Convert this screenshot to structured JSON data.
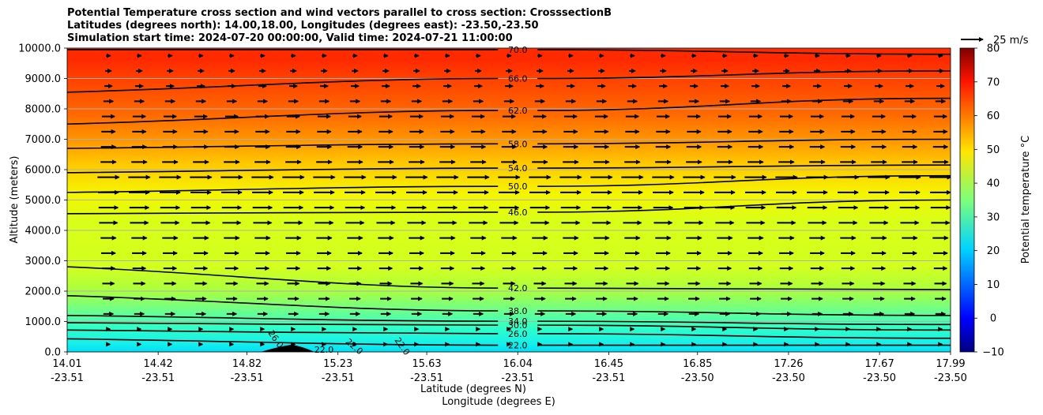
{
  "chart_data": {
    "type": "contour",
    "title_lines": [
      "Potential Temperature cross section and wind vectors parallel to cross section: CrosssectionB",
      "Latitudes (degrees north): 14.00,18.00, Longitudes (degrees east): -23.50,-23.50",
      "Simulation start time: 2024-07-20 00:00:00, Valid time: 2024-07-21 11:00:00"
    ],
    "xlabel_lat": "Latitude (degrees N)",
    "xlabel_lon": "Longitude (degrees E)",
    "ylabel": "Altitude (meters)",
    "x_ticks": [
      {
        "lat": "14.01",
        "lon": "-23.51"
      },
      {
        "lat": "14.42",
        "lon": "-23.51"
      },
      {
        "lat": "14.82",
        "lon": "-23.51"
      },
      {
        "lat": "15.23",
        "lon": "-23.51"
      },
      {
        "lat": "15.63",
        "lon": "-23.51"
      },
      {
        "lat": "16.04",
        "lon": "-23.51"
      },
      {
        "lat": "16.45",
        "lon": "-23.51"
      },
      {
        "lat": "16.85",
        "lon": "-23.50"
      },
      {
        "lat": "17.26",
        "lon": "-23.50"
      },
      {
        "lat": "17.67",
        "lon": "-23.50"
      },
      {
        "lat": "17.99",
        "lon": "-23.50"
      }
    ],
    "y_ticks": [
      "0.0",
      "1000.0",
      "2000.0",
      "3000.0",
      "4000.0",
      "5000.0",
      "6000.0",
      "7000.0",
      "8000.0",
      "9000.0",
      "10000.0"
    ],
    "ylim": [
      0,
      10000
    ],
    "xlim": [
      14.01,
      17.99
    ],
    "grid": "horizontal",
    "colorbar": {
      "label": "Potential temperature $^\\circ$C",
      "ticks": [
        "−10",
        "0",
        "10",
        "20",
        "30",
        "40",
        "50",
        "60",
        "70",
        "80"
      ],
      "range": [
        -10,
        80
      ],
      "colormap": "jet"
    },
    "quiver_key": {
      "label": "25 m/s",
      "speed": 25
    },
    "contours": [
      {
        "level": "22.0",
        "label": "22.0",
        "points": [
          [
            16.04,
            220
          ],
          [
            17.99,
            220
          ]
        ]
      },
      {
        "level": "26.0",
        "label": "26.0",
        "points": [
          [
            16.04,
            600
          ],
          [
            17.99,
            450
          ]
        ]
      },
      {
        "level": "30.0",
        "label": "30.0",
        "points": [
          [
            16.04,
            880
          ],
          [
            17.99,
            720
          ]
        ]
      },
      {
        "level": "34.0",
        "label": "34.0",
        "points": [
          [
            16.04,
            1010
          ],
          [
            17.99,
            900
          ]
        ]
      },
      {
        "level": "38.0",
        "label": "38.0",
        "points": [
          [
            16.04,
            1350
          ],
          [
            17.99,
            1200
          ]
        ]
      },
      {
        "level": "42.0",
        "label": "42.0",
        "points": [
          [
            16.04,
            2100
          ],
          [
            17.99,
            2050
          ]
        ]
      },
      {
        "level": "46.0",
        "label": "46.0",
        "points": [
          [
            16.04,
            4600
          ],
          [
            17.99,
            5000
          ]
        ]
      },
      {
        "level": "50.0",
        "label": "50.0",
        "points": [
          [
            16.04,
            5450
          ],
          [
            17.99,
            5800
          ]
        ]
      },
      {
        "level": "54.0",
        "label": "54.0",
        "points": [
          [
            16.04,
            6050
          ],
          [
            17.99,
            6150
          ]
        ]
      },
      {
        "level": "58.0",
        "label": "58.0",
        "points": [
          [
            16.04,
            6850
          ],
          [
            17.99,
            7000
          ]
        ]
      },
      {
        "level": "62.0",
        "label": "62.0",
        "points": [
          [
            16.04,
            7950
          ],
          [
            17.99,
            8350
          ]
        ]
      },
      {
        "level": "66.0",
        "label": "66.0",
        "points": [
          [
            16.04,
            9000
          ],
          [
            17.99,
            9250
          ]
        ]
      },
      {
        "level": "70.0",
        "label": "70.0",
        "points": [
          [
            16.04,
            9950
          ],
          [
            17.99,
            9800
          ]
        ]
      }
    ],
    "surface_labels": [
      "26.0",
      "22.0",
      "22.0",
      "22.0"
    ],
    "wind": "eastward (parallel to section), ~10-25 m/s, strongest 4000-6000 m"
  }
}
